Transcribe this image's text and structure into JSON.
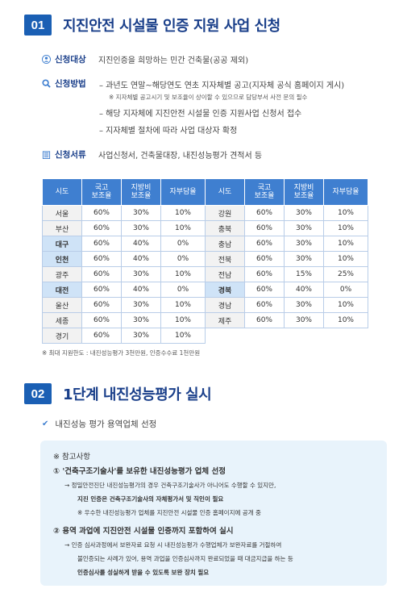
{
  "section1": {
    "number": "01",
    "title": "지진안전 시설물 인증 지원 사업 신청",
    "target": {
      "label": "신청대상",
      "value": "지진인증을 희망하는 민간 건축물(공공 제외)"
    },
    "method": {
      "label": "신청방법",
      "items": [
        "– 과년도 연말~해당연도 연초 지자체별 공고(지자체 공식 홈페이지 게시)",
        "※ 지자체별 공고시기 및 보조율이 상이할 수 있으므로 담당부서 사전 문의 필수",
        "– 해당 지자체에 지진안전 시설물 인증 지원사업 신청서 접수",
        "– 지자체별 절차에 따라 사업 대상자 확정"
      ]
    },
    "docs": {
      "label": "신청서류",
      "value": "사업신청서, 건축물대장, 내진성능평가 견적서 등"
    }
  },
  "table": {
    "headers": [
      "시도",
      "국고\n보조율",
      "지방비\n보조율",
      "자부담율",
      "시도",
      "국고\n보조율",
      "지방비\n보조율",
      "자부담율"
    ],
    "left": [
      [
        "서울",
        "60%",
        "30%",
        "10%"
      ],
      [
        "부산",
        "60%",
        "30%",
        "10%"
      ],
      [
        "대구",
        "60%",
        "40%",
        "0%"
      ],
      [
        "인천",
        "60%",
        "40%",
        "0%"
      ],
      [
        "광주",
        "60%",
        "30%",
        "10%"
      ],
      [
        "대전",
        "60%",
        "40%",
        "0%"
      ],
      [
        "울산",
        "60%",
        "30%",
        "10%"
      ],
      [
        "세종",
        "60%",
        "30%",
        "10%"
      ],
      [
        "경기",
        "60%",
        "30%",
        "10%"
      ]
    ],
    "right": [
      [
        "강원",
        "60%",
        "30%",
        "10%"
      ],
      [
        "충북",
        "60%",
        "30%",
        "10%"
      ],
      [
        "충남",
        "60%",
        "30%",
        "10%"
      ],
      [
        "전북",
        "60%",
        "30%",
        "10%"
      ],
      [
        "전남",
        "60%",
        "15%",
        "25%"
      ],
      [
        "경북",
        "60%",
        "40%",
        "0%"
      ],
      [
        "경남",
        "60%",
        "30%",
        "10%"
      ],
      [
        "제주",
        "60%",
        "30%",
        "10%"
      ]
    ],
    "highlighted_regions": [
      "대구",
      "인천",
      "대전",
      "경북"
    ]
  },
  "table_note": "※ 최대 지원한도 : 내진성능평가 3천만원, 인증수수료 1천만원",
  "section2": {
    "number": "02",
    "title": "1단계 내진성능평가 실시",
    "check_item": "내진성능 평가 용역업체 선정",
    "box": {
      "heading": "※ 참고사항",
      "p1_title": "① '건축구조기술사'를 보유한 내진성능평가 업체 선정",
      "p1_line1": "→ 정밀안전진단 내진성능평가의 경우 건축구조기술사가 아니어도 수행할 수 있지만,",
      "p1_line2": "지진 인증은 건축구조기술사의 자체평가서 및 직인이 필요",
      "p1_note": "※ 우수한 내진성능평가 업체를 지진안전 시설물 인증 홈페이지에 공개 중",
      "p2_title": "② 용역 과업에 지진안전 시설물 인증까지 포함하여 실시",
      "p2_line1": "→ 인증 심사과정에서 보완자료 요청 시 내진성능평가 수행업체가 보완자료를 거절하여",
      "p2_line2": "불인증되는 사례가 있어, 용역 과업을 인증심사까지 완료되었을 때 대금지급을 하는 등",
      "p2_line3": "인증심사를 성실하게 받을 수 있도록 보완 장치 필요"
    }
  }
}
